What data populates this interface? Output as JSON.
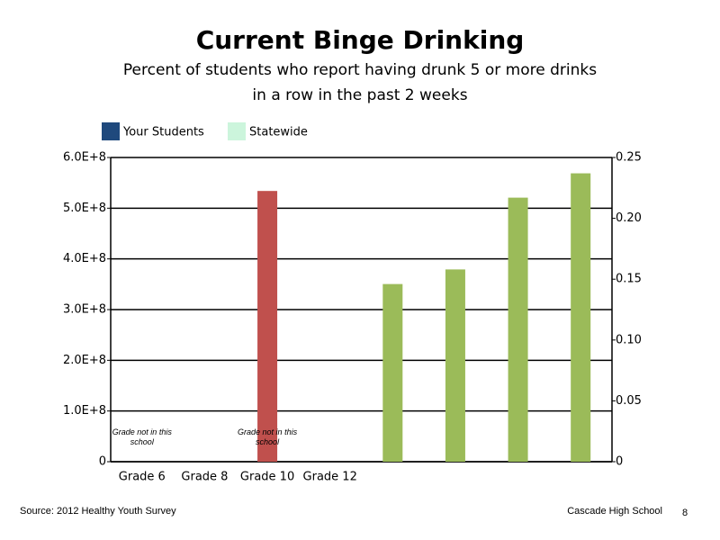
{
  "chart_data": {
    "type": "bar",
    "title": "Current Binge Drinking",
    "subtitle": [
      "Percent of students who report having drunk 5 or more drinks",
      "in a row in the past 2 weeks"
    ],
    "categories": [
      "Grade 6",
      "Grade 8",
      "Grade 10",
      "Grade 12",
      null,
      null,
      null,
      null
    ],
    "series": [
      {
        "name": "Your Students",
        "color": "#1f497d",
        "bar_color": "#c0504d",
        "axis": "y",
        "values": [
          null,
          null,
          534000000,
          null,
          null,
          null,
          null,
          null
        ]
      },
      {
        "name": "Statewide",
        "color": "#ccf5dc",
        "bar_color": "#9bbb59",
        "axis": "y2",
        "values": [
          null,
          null,
          null,
          null,
          0.146,
          0.158,
          0.217,
          0.237
        ]
      }
    ],
    "ylim": [
      0,
      600000000
    ],
    "yticks": [
      0,
      {
        "value": 100000000,
        "label": "1.0E+8"
      },
      {
        "value": 200000000,
        "label": "2.0E+8"
      },
      {
        "value": 300000000,
        "label": "3.0E+8"
      },
      {
        "value": 400000000,
        "label": "4.0E+8"
      },
      {
        "value": 500000000,
        "label": "5.0E+8"
      },
      {
        "value": 600000000,
        "label": "6.0E+8"
      }
    ],
    "y2lim": [
      0,
      0.25
    ],
    "y2ticks": [
      0,
      0.05,
      {
        "value": 0.1,
        "label": "0.10"
      },
      0.15,
      {
        "value": 0.2,
        "label": "0.20"
      },
      0.25
    ],
    "grid": true,
    "legend": "top-left",
    "annotations": [
      "Grade not in this school",
      "Grade not in this school"
    ],
    "source": "Source: 2012 Healthy Youth Survey",
    "school": "Cascade High School",
    "page_number": "8"
  }
}
